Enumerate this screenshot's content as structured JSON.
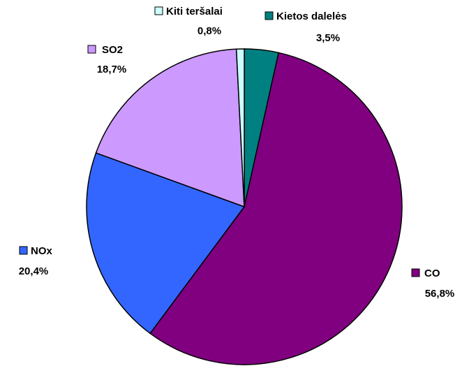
{
  "chart_data": {
    "type": "pie",
    "categories": [
      "Kietos dalelės",
      "CO",
      "NOx",
      "SO2",
      "Kiti teršalai"
    ],
    "values": [
      3.5,
      56.8,
      20.4,
      18.7,
      0.8
    ],
    "value_labels": [
      "3,5%",
      "56,8%",
      "20,4%",
      "18,7%",
      "0,8%"
    ],
    "colors": [
      "#008080",
      "#800080",
      "#3366ff",
      "#cc99ff",
      "#ccffff"
    ],
    "start_angle": "top",
    "direction": "clockwise"
  }
}
